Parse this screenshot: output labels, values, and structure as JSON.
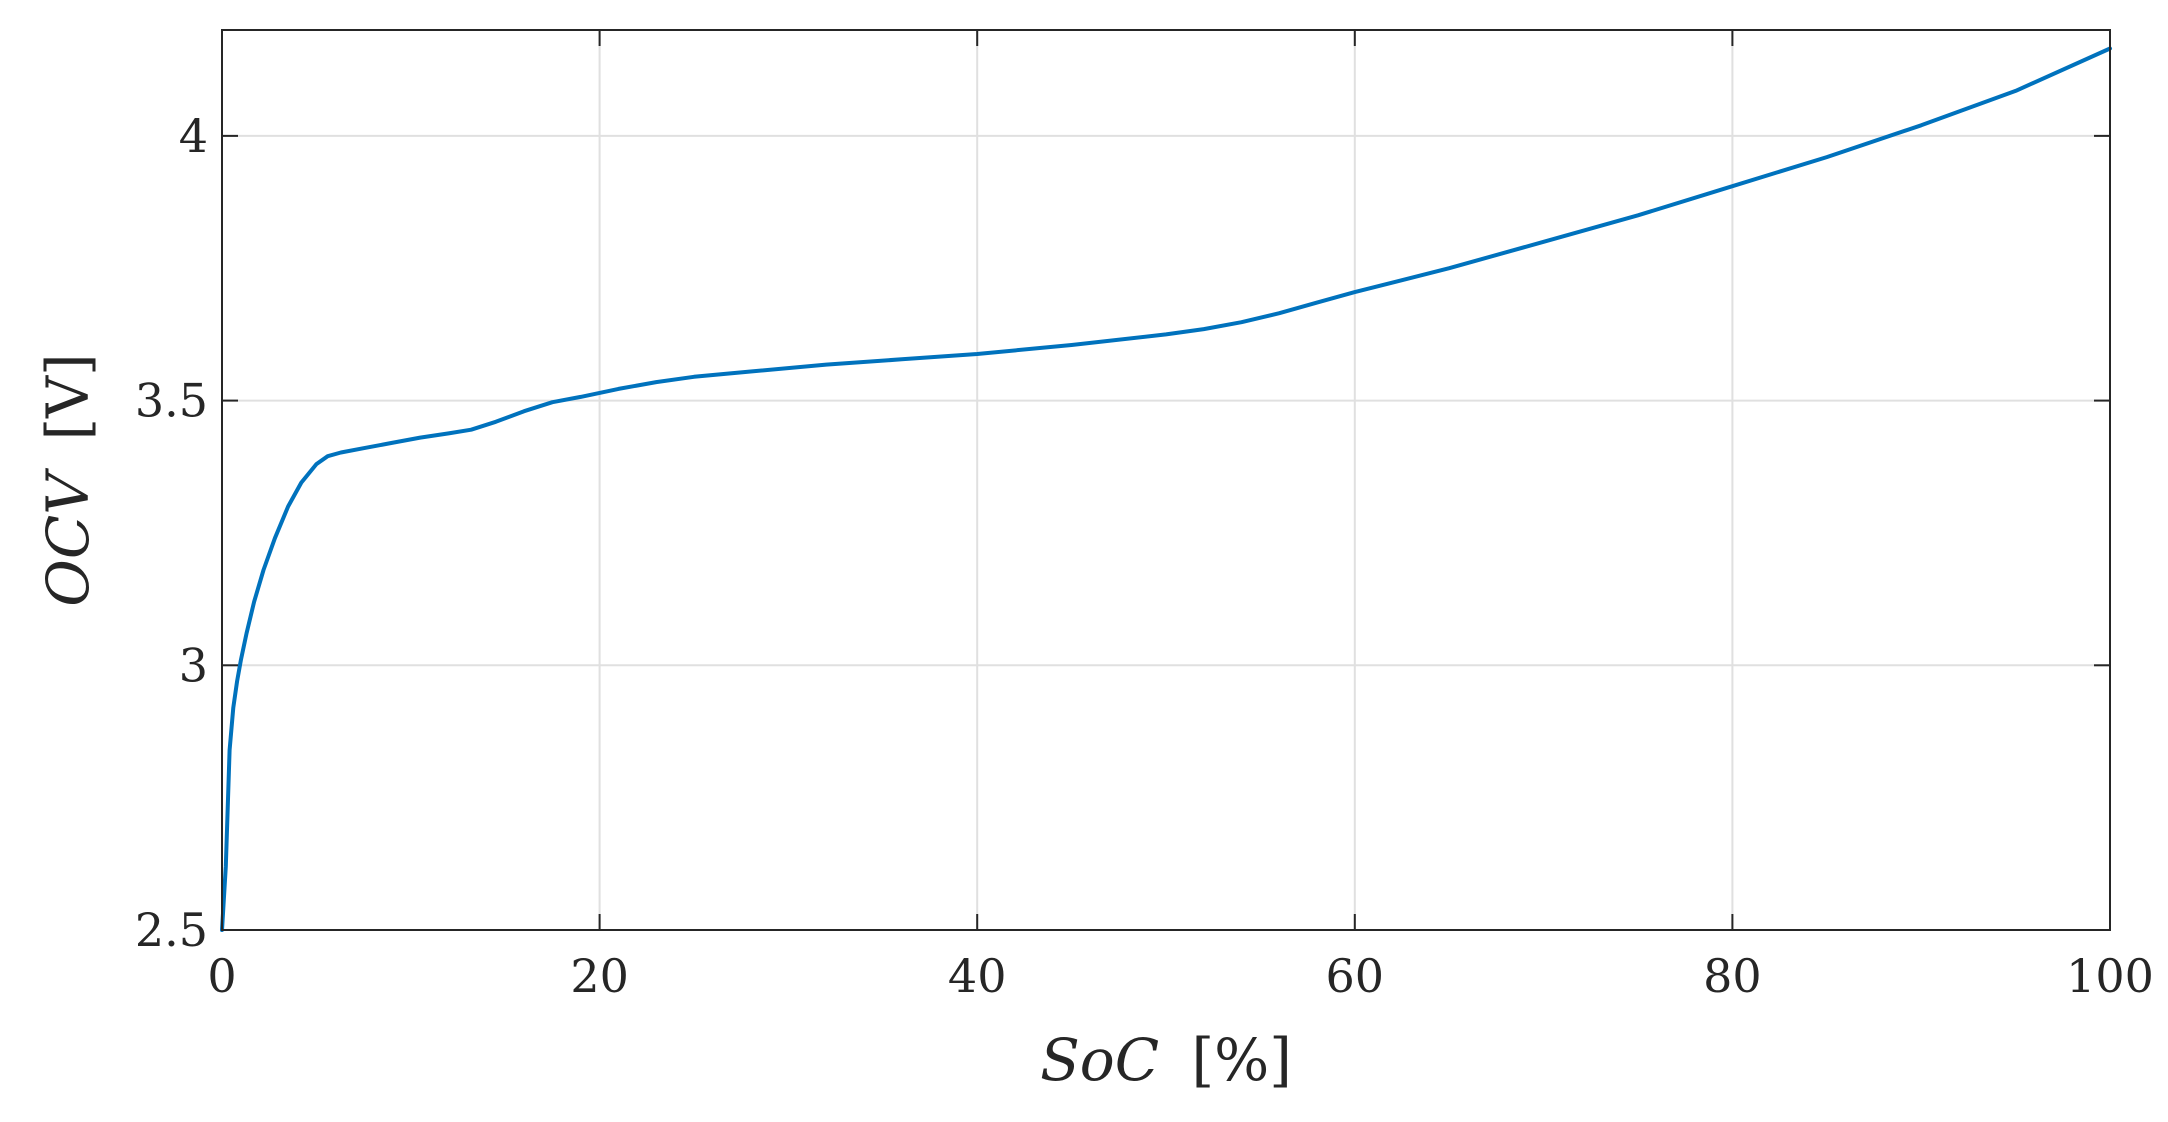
{
  "chart_data": {
    "type": "line",
    "title": "",
    "xlabel_var": "SoC",
    "xlabel_unit": "[%]",
    "ylabel_var": "OCV",
    "ylabel_unit": "[V]",
    "xlim": [
      0,
      100
    ],
    "ylim": [
      2.5,
      4.2
    ],
    "xticks": [
      "0",
      "20",
      "40",
      "60",
      "80",
      "100"
    ],
    "yticks": [
      "2.5",
      "3",
      "3.5",
      "4"
    ],
    "grid": true,
    "legend": "none",
    "line_color": "#0072BD",
    "series": [
      {
        "x": [
          0,
          0.2,
          0.4,
          0.6,
          0.8,
          1.0,
          1.3,
          1.7,
          2.2,
          2.8,
          3.5,
          4.2,
          5.0,
          5.6,
          6.3,
          7.5,
          9.0,
          10.5,
          12.0,
          13.2,
          14.5,
          16.0,
          17.5,
          19.0,
          21.0,
          23.0,
          25.0,
          28.0,
          32.0,
          36.0,
          40.0,
          45.0,
          50.0,
          52.0,
          54.0,
          56.0,
          58.0,
          60.0,
          65.0,
          70.0,
          75.0,
          80.0,
          85.0,
          90.0,
          95.0,
          100.0
        ],
        "y": [
          2.5,
          2.62,
          2.84,
          2.92,
          2.97,
          3.01,
          3.06,
          3.12,
          3.18,
          3.24,
          3.3,
          3.345,
          3.38,
          3.395,
          3.402,
          3.41,
          3.42,
          3.43,
          3.438,
          3.445,
          3.46,
          3.48,
          3.497,
          3.507,
          3.522,
          3.535,
          3.545,
          3.555,
          3.568,
          3.578,
          3.588,
          3.605,
          3.625,
          3.635,
          3.648,
          3.665,
          3.685,
          3.705,
          3.75,
          3.8,
          3.85,
          3.905,
          3.96,
          4.02,
          4.085,
          4.165
        ]
      }
    ]
  }
}
